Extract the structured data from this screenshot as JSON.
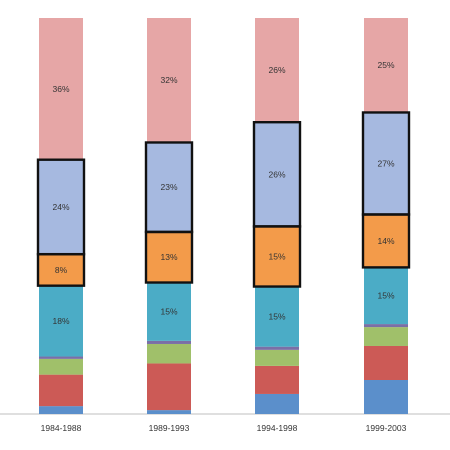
{
  "chart_data": {
    "type": "bar",
    "stacked": true,
    "percent_stacked": true,
    "categories": [
      "1984-1988",
      "1989-1993",
      "1994-1998",
      "1999-2003"
    ],
    "ylim": [
      0,
      100
    ],
    "grid": false,
    "legend": "none",
    "series": [
      {
        "color": "#5b8fcb",
        "values": [
          2,
          1,
          5,
          9
        ]
      },
      {
        "color": "#cc5a56",
        "values": [
          8,
          12,
          7,
          9
        ]
      },
      {
        "color": "#a0c06a",
        "values": [
          4,
          5,
          4,
          5
        ]
      },
      {
        "color": "#7b6fa6",
        "values": [
          0.6,
          0.8,
          0.8,
          0.8
        ]
      },
      {
        "color": "#4bacc6",
        "values": [
          18,
          15,
          15,
          15
        ],
        "labels": [
          "18%",
          "15%",
          "15%",
          "15%"
        ]
      },
      {
        "color": "#f39b4a",
        "values": [
          8,
          13,
          15,
          14
        ],
        "labels": [
          "8%",
          "13%",
          "15%",
          "14%"
        ],
        "highlight": true
      },
      {
        "color": "#a6b9e0",
        "values": [
          24,
          23,
          26,
          27
        ],
        "labels": [
          "24%",
          "23%",
          "26%",
          "27%"
        ],
        "highlight": true
      },
      {
        "color": "#e6a6a6",
        "values": [
          36,
          32,
          26,
          25
        ],
        "labels": [
          "36%",
          "32%",
          "26%",
          "25%"
        ]
      }
    ]
  }
}
